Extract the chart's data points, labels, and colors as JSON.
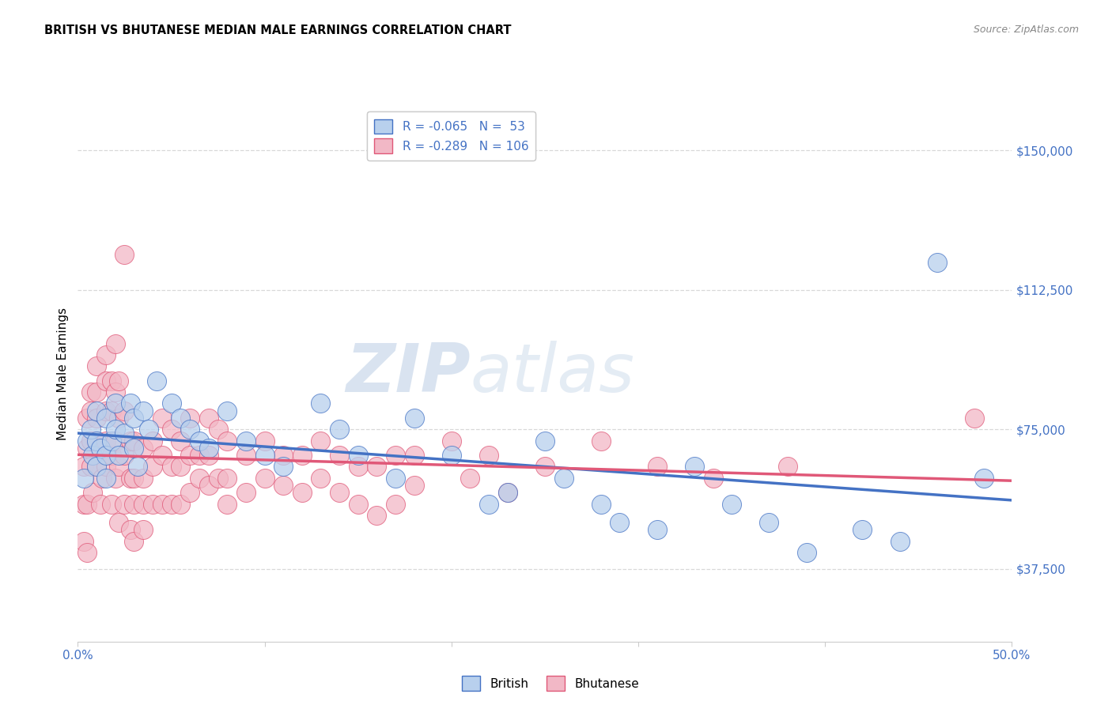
{
  "title": "BRITISH VS BHUTANESE MEDIAN MALE EARNINGS CORRELATION CHART",
  "source": "Source: ZipAtlas.com",
  "ylabel": "Median Male Earnings",
  "xlim": [
    0.0,
    0.5
  ],
  "ylim": [
    18000,
    162000
  ],
  "yticks": [
    37500,
    75000,
    112500,
    150000
  ],
  "xticks": [
    0.0,
    0.1,
    0.2,
    0.3,
    0.4,
    0.5
  ],
  "ytick_labels": [
    "$37,500",
    "$75,000",
    "$112,500",
    "$150,000"
  ],
  "background_color": "#ffffff",
  "grid_color": "#d8d8d8",
  "british_color": "#b8d0ed",
  "bhutanese_color": "#f2b8c6",
  "british_line_color": "#4472c4",
  "bhutanese_line_color": "#e05878",
  "legend_british_R": "-0.065",
  "legend_british_N": "53",
  "legend_bhutanese_R": "-0.289",
  "legend_bhutanese_N": "106",
  "watermark_zip": "ZIP",
  "watermark_atlas": "atlas",
  "british_points": [
    [
      0.003,
      62000
    ],
    [
      0.005,
      72000
    ],
    [
      0.007,
      75000
    ],
    [
      0.008,
      68000
    ],
    [
      0.01,
      80000
    ],
    [
      0.01,
      72000
    ],
    [
      0.01,
      65000
    ],
    [
      0.012,
      70000
    ],
    [
      0.015,
      78000
    ],
    [
      0.015,
      68000
    ],
    [
      0.015,
      62000
    ],
    [
      0.018,
      72000
    ],
    [
      0.02,
      82000
    ],
    [
      0.02,
      75000
    ],
    [
      0.022,
      68000
    ],
    [
      0.025,
      74000
    ],
    [
      0.028,
      82000
    ],
    [
      0.03,
      78000
    ],
    [
      0.03,
      70000
    ],
    [
      0.032,
      65000
    ],
    [
      0.035,
      80000
    ],
    [
      0.038,
      75000
    ],
    [
      0.042,
      88000
    ],
    [
      0.05,
      82000
    ],
    [
      0.055,
      78000
    ],
    [
      0.06,
      75000
    ],
    [
      0.065,
      72000
    ],
    [
      0.07,
      70000
    ],
    [
      0.08,
      80000
    ],
    [
      0.09,
      72000
    ],
    [
      0.1,
      68000
    ],
    [
      0.11,
      65000
    ],
    [
      0.13,
      82000
    ],
    [
      0.14,
      75000
    ],
    [
      0.15,
      68000
    ],
    [
      0.17,
      62000
    ],
    [
      0.18,
      78000
    ],
    [
      0.2,
      68000
    ],
    [
      0.22,
      55000
    ],
    [
      0.23,
      58000
    ],
    [
      0.25,
      72000
    ],
    [
      0.26,
      62000
    ],
    [
      0.28,
      55000
    ],
    [
      0.29,
      50000
    ],
    [
      0.31,
      48000
    ],
    [
      0.33,
      65000
    ],
    [
      0.35,
      55000
    ],
    [
      0.37,
      50000
    ],
    [
      0.39,
      42000
    ],
    [
      0.42,
      48000
    ],
    [
      0.44,
      45000
    ],
    [
      0.46,
      120000
    ],
    [
      0.485,
      62000
    ]
  ],
  "bhutanese_points": [
    [
      0.003,
      55000
    ],
    [
      0.003,
      65000
    ],
    [
      0.003,
      45000
    ],
    [
      0.005,
      70000
    ],
    [
      0.005,
      78000
    ],
    [
      0.005,
      55000
    ],
    [
      0.005,
      42000
    ],
    [
      0.007,
      85000
    ],
    [
      0.007,
      80000
    ],
    [
      0.007,
      72000
    ],
    [
      0.007,
      65000
    ],
    [
      0.008,
      58000
    ],
    [
      0.01,
      92000
    ],
    [
      0.01,
      85000
    ],
    [
      0.01,
      78000
    ],
    [
      0.01,
      72000
    ],
    [
      0.01,
      65000
    ],
    [
      0.012,
      55000
    ],
    [
      0.013,
      62000
    ],
    [
      0.015,
      95000
    ],
    [
      0.015,
      88000
    ],
    [
      0.015,
      80000
    ],
    [
      0.015,
      72000
    ],
    [
      0.015,
      65000
    ],
    [
      0.018,
      88000
    ],
    [
      0.018,
      80000
    ],
    [
      0.018,
      68000
    ],
    [
      0.018,
      55000
    ],
    [
      0.02,
      98000
    ],
    [
      0.02,
      85000
    ],
    [
      0.02,
      72000
    ],
    [
      0.02,
      62000
    ],
    [
      0.022,
      88000
    ],
    [
      0.022,
      78000
    ],
    [
      0.022,
      65000
    ],
    [
      0.022,
      50000
    ],
    [
      0.025,
      122000
    ],
    [
      0.025,
      80000
    ],
    [
      0.025,
      68000
    ],
    [
      0.025,
      55000
    ],
    [
      0.028,
      72000
    ],
    [
      0.028,
      62000
    ],
    [
      0.028,
      48000
    ],
    [
      0.03,
      72000
    ],
    [
      0.03,
      62000
    ],
    [
      0.03,
      55000
    ],
    [
      0.03,
      45000
    ],
    [
      0.035,
      70000
    ],
    [
      0.035,
      62000
    ],
    [
      0.035,
      55000
    ],
    [
      0.035,
      48000
    ],
    [
      0.04,
      72000
    ],
    [
      0.04,
      65000
    ],
    [
      0.04,
      55000
    ],
    [
      0.045,
      78000
    ],
    [
      0.045,
      68000
    ],
    [
      0.045,
      55000
    ],
    [
      0.05,
      75000
    ],
    [
      0.05,
      65000
    ],
    [
      0.05,
      55000
    ],
    [
      0.055,
      72000
    ],
    [
      0.055,
      65000
    ],
    [
      0.055,
      55000
    ],
    [
      0.06,
      78000
    ],
    [
      0.06,
      68000
    ],
    [
      0.06,
      58000
    ],
    [
      0.065,
      68000
    ],
    [
      0.065,
      62000
    ],
    [
      0.07,
      78000
    ],
    [
      0.07,
      68000
    ],
    [
      0.07,
      60000
    ],
    [
      0.075,
      75000
    ],
    [
      0.075,
      62000
    ],
    [
      0.08,
      72000
    ],
    [
      0.08,
      62000
    ],
    [
      0.08,
      55000
    ],
    [
      0.09,
      68000
    ],
    [
      0.09,
      58000
    ],
    [
      0.1,
      72000
    ],
    [
      0.1,
      62000
    ],
    [
      0.11,
      68000
    ],
    [
      0.11,
      60000
    ],
    [
      0.12,
      68000
    ],
    [
      0.12,
      58000
    ],
    [
      0.13,
      72000
    ],
    [
      0.13,
      62000
    ],
    [
      0.14,
      68000
    ],
    [
      0.14,
      58000
    ],
    [
      0.15,
      65000
    ],
    [
      0.15,
      55000
    ],
    [
      0.16,
      65000
    ],
    [
      0.16,
      52000
    ],
    [
      0.17,
      68000
    ],
    [
      0.17,
      55000
    ],
    [
      0.18,
      68000
    ],
    [
      0.18,
      60000
    ],
    [
      0.2,
      72000
    ],
    [
      0.21,
      62000
    ],
    [
      0.22,
      68000
    ],
    [
      0.23,
      58000
    ],
    [
      0.25,
      65000
    ],
    [
      0.28,
      72000
    ],
    [
      0.31,
      65000
    ],
    [
      0.34,
      62000
    ],
    [
      0.38,
      65000
    ],
    [
      0.48,
      78000
    ]
  ]
}
